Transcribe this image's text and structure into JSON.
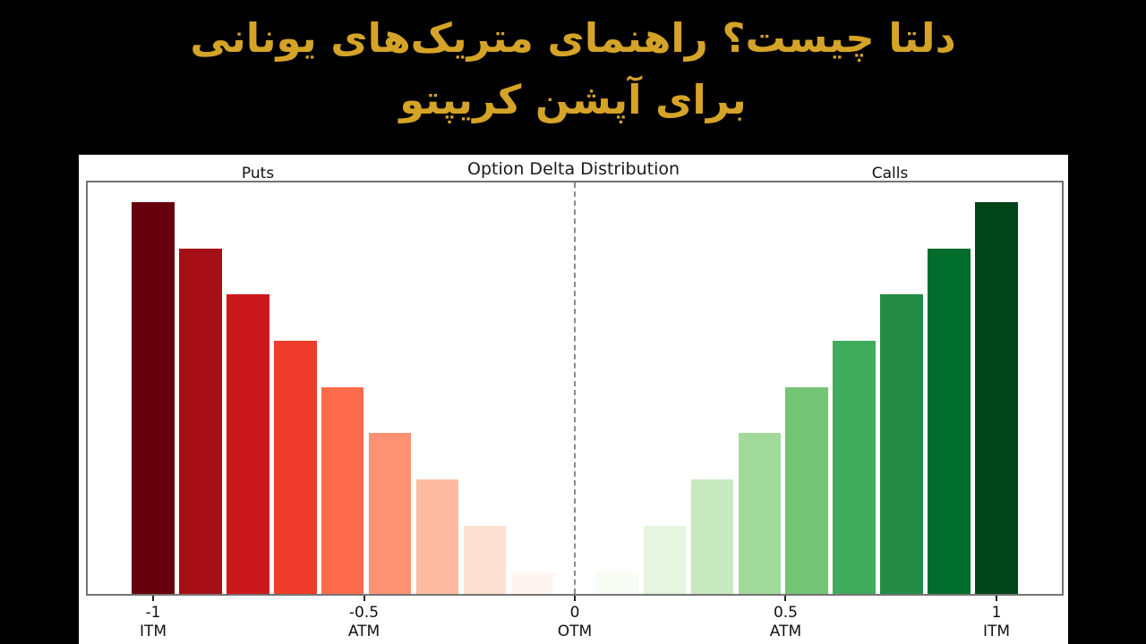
{
  "page": {
    "background_color": "#000000",
    "title_color": "#D5A327",
    "title_line1": "دلتا چیست؟ راهنمای متریک‌های یونانی",
    "title_line2": "برای آپشن کریپتو"
  },
  "chart_data": {
    "type": "bar",
    "title": "Option Delta Distribution",
    "left_annotation": "Puts",
    "right_annotation": "Calls",
    "xlabel": "",
    "ylabel": "",
    "xlim": [
      -1.155,
      1.155
    ],
    "ylim": [
      0,
      0.945
    ],
    "grid": false,
    "legend": "none",
    "zero_line": {
      "x": 0,
      "style": "dashed",
      "color": "#8a8a8a"
    },
    "bar_width": 0.1,
    "x_ticks": [
      {
        "value": -1,
        "label": "-1",
        "sublabel": "ITM"
      },
      {
        "value": -0.5,
        "label": "-0.5",
        "sublabel": "ATM"
      },
      {
        "value": 0,
        "label": "0",
        "sublabel": "OTM"
      },
      {
        "value": 0.5,
        "label": "0.5",
        "sublabel": "ATM"
      },
      {
        "value": 1,
        "label": "1",
        "sublabel": "ITM"
      }
    ],
    "series": [
      {
        "name": "Puts",
        "x": [
          -1.0,
          -0.8875,
          -0.775,
          -0.6625,
          -0.55,
          -0.4375,
          -0.325,
          -0.2125,
          -0.1
        ],
        "values": [
          0.9,
          0.7938,
          0.6875,
          0.5813,
          0.475,
          0.3688,
          0.2625,
          0.1563,
          0.05
        ],
        "colors": [
          "#67000d",
          "#a50f15",
          "#cb181d",
          "#ef3b2c",
          "#fb6a4a",
          "#fc9272",
          "#fcbba1",
          "#fee0d2",
          "#fff5f0"
        ]
      },
      {
        "name": "Calls",
        "x": [
          0.1,
          0.2125,
          0.325,
          0.4375,
          0.55,
          0.6625,
          0.775,
          0.8875,
          1.0
        ],
        "values": [
          0.05,
          0.1563,
          0.2625,
          0.3688,
          0.475,
          0.5813,
          0.6875,
          0.7938,
          0.9
        ],
        "colors": [
          "#f7fcf5",
          "#e5f5e0",
          "#c7e9c0",
          "#a1d99b",
          "#74c476",
          "#41ab5d",
          "#238b45",
          "#006d2c",
          "#00441b"
        ]
      }
    ]
  }
}
